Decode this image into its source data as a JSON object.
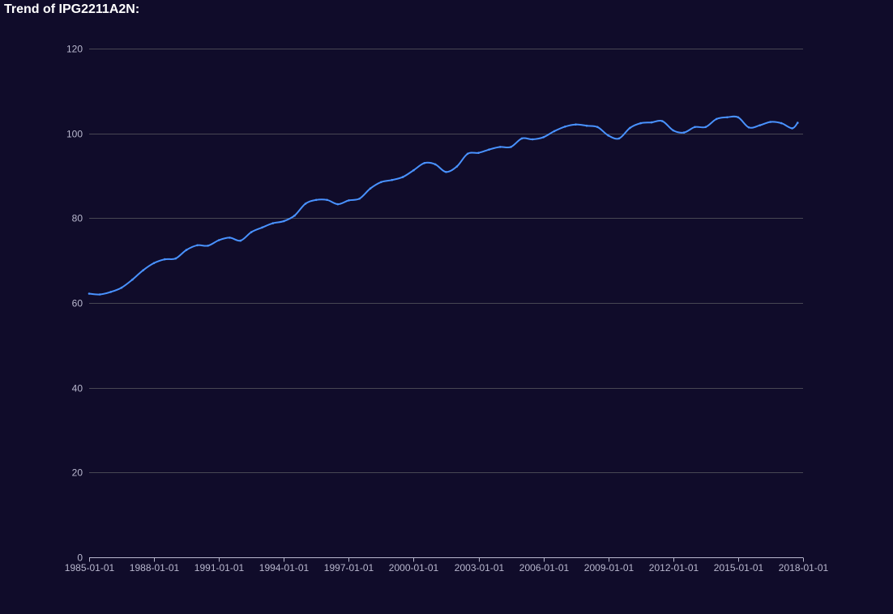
{
  "colors": {
    "background": "#100c2a",
    "title": "#ffffff",
    "series": "#4992ff",
    "grid": "#484753",
    "axis": "#b9b8ce"
  },
  "chart_data": {
    "type": "line",
    "title": "Trend of IPG2211A2N:",
    "xlabel": "",
    "ylabel": "",
    "ylim": [
      0,
      120
    ],
    "yticks": [
      0,
      20,
      40,
      60,
      80,
      100,
      120
    ],
    "xlim": [
      "1985-01-01",
      "2018-01-01"
    ],
    "xticks": [
      "1985-01-01",
      "1988-01-01",
      "1991-01-01",
      "1994-01-01",
      "1997-01-01",
      "2000-01-01",
      "2003-01-01",
      "2006-01-01",
      "2009-01-01",
      "2012-01-01",
      "2015-01-01",
      "2018-01-01"
    ],
    "grid": true,
    "legend": "none",
    "series": [
      {
        "x": [
          "1985-01-01",
          "1985-07-01",
          "1986-01-01",
          "1986-07-01",
          "1987-01-01",
          "1987-07-01",
          "1988-01-01",
          "1988-07-01",
          "1989-01-01",
          "1989-07-01",
          "1990-01-01",
          "1990-07-01",
          "1991-01-01",
          "1991-07-01",
          "1992-01-01",
          "1992-07-01",
          "1993-01-01",
          "1993-07-01",
          "1994-01-01",
          "1994-07-01",
          "1995-01-01",
          "1995-07-01",
          "1996-01-01",
          "1996-07-01",
          "1997-01-01",
          "1997-07-01",
          "1998-01-01",
          "1998-07-01",
          "1999-01-01",
          "1999-07-01",
          "2000-01-01",
          "2000-07-01",
          "2001-01-01",
          "2001-07-01",
          "2002-01-01",
          "2002-07-01",
          "2003-01-01",
          "2003-07-01",
          "2004-01-01",
          "2004-07-01",
          "2005-01-01",
          "2005-07-01",
          "2006-01-01",
          "2006-07-01",
          "2007-01-01",
          "2007-07-01",
          "2008-01-01",
          "2008-07-01",
          "2009-01-01",
          "2009-07-01",
          "2010-01-01",
          "2010-07-01",
          "2011-01-01",
          "2011-07-01",
          "2012-01-01",
          "2012-07-01",
          "2013-01-01",
          "2013-07-01",
          "2014-01-01",
          "2014-07-01",
          "2015-01-01",
          "2015-07-01",
          "2016-01-01",
          "2016-07-01",
          "2017-01-01",
          "2017-07-01",
          "2017-10-01"
        ],
        "values": [
          62.2,
          62.0,
          62.6,
          63.6,
          65.5,
          67.7,
          69.4,
          70.3,
          70.5,
          72.5,
          73.6,
          73.5,
          74.8,
          75.4,
          74.7,
          76.7,
          77.8,
          78.8,
          79.3,
          80.6,
          83.4,
          84.3,
          84.3,
          83.3,
          84.2,
          84.6,
          87.0,
          88.5,
          89.0,
          89.7,
          91.3,
          93.0,
          92.7,
          90.9,
          92.2,
          95.2,
          95.4,
          96.2,
          96.8,
          96.8,
          98.8,
          98.6,
          99.1,
          100.5,
          101.6,
          102.1,
          101.8,
          101.5,
          99.5,
          98.8,
          101.3,
          102.4,
          102.6,
          102.9,
          100.7,
          100.2,
          101.5,
          101.5,
          103.4,
          103.8,
          103.8,
          101.4,
          101.9,
          102.7,
          102.4,
          101.2,
          102.5
        ]
      }
    ]
  }
}
